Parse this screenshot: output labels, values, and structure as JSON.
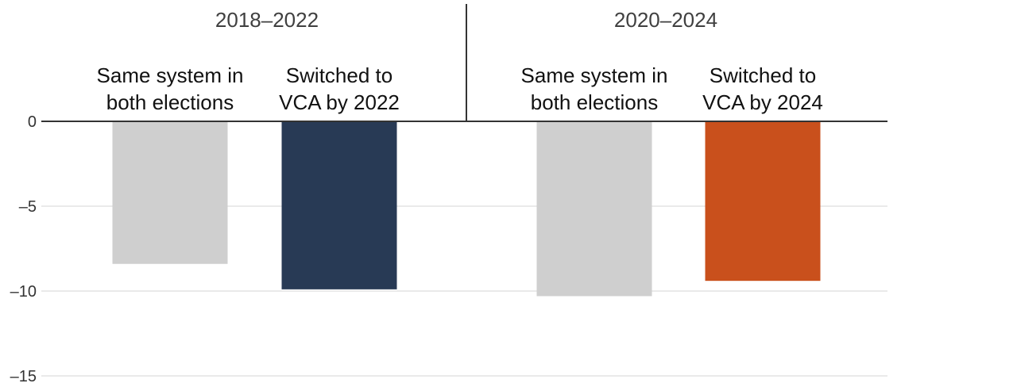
{
  "chart_data": {
    "type": "bar",
    "ylim": [
      -15,
      0
    ],
    "yticks": [
      0,
      -5,
      -10,
      -15
    ],
    "ytick_labels": [
      "0",
      "–5",
      "–10",
      "–15"
    ],
    "grid": true,
    "groups": [
      {
        "title": "2018–2022",
        "bars": [
          {
            "label_lines": [
              "Same system in",
              "both elections"
            ],
            "value": -8.4,
            "color": "#cfcfcf"
          },
          {
            "label_lines": [
              "Switched to",
              "VCA by 2022"
            ],
            "value": -9.9,
            "color": "#283a55"
          }
        ]
      },
      {
        "title": "2020–2024",
        "bars": [
          {
            "label_lines": [
              "Same system in",
              "both elections"
            ],
            "value": -10.3,
            "color": "#cfcfcf"
          },
          {
            "label_lines": [
              "Switched to",
              "VCA by 2024"
            ],
            "value": -9.4,
            "color": "#c9501c"
          }
        ]
      }
    ]
  }
}
